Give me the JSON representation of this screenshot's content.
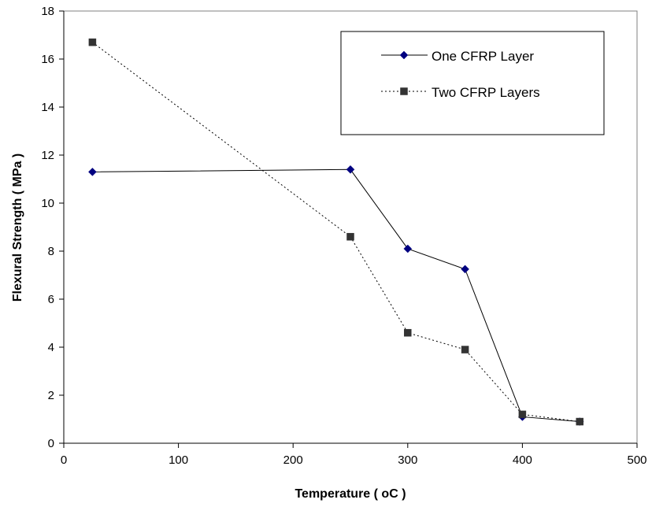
{
  "chart_data": {
    "type": "line",
    "title": "",
    "xlabel": "Temperature ( oC )",
    "ylabel": "Flexural Strength ( MPa )",
    "xlim": [
      0,
      500
    ],
    "ylim": [
      0,
      18
    ],
    "xticks": [
      0,
      100,
      200,
      300,
      400,
      500
    ],
    "yticks": [
      0,
      2,
      4,
      6,
      8,
      10,
      12,
      14,
      16,
      18
    ],
    "grid": false,
    "legend_position": "top-right",
    "series": [
      {
        "name": "One CFRP Layer",
        "color": "#000080",
        "line_style": "solid",
        "marker": "diamond",
        "x": [
          25,
          250,
          300,
          350,
          400,
          450
        ],
        "y": [
          11.3,
          11.4,
          8.1,
          7.25,
          1.1,
          0.9
        ]
      },
      {
        "name": "Two CFRP Layers",
        "color": "#333333",
        "line_style": "dotted",
        "marker": "square",
        "x": [
          25,
          250,
          300,
          350,
          400,
          450
        ],
        "y": [
          16.7,
          8.6,
          4.6,
          3.9,
          1.2,
          0.9
        ]
      }
    ]
  }
}
